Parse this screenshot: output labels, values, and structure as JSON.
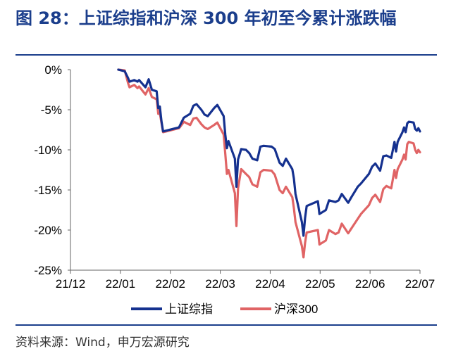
{
  "figure_title": "图 28：上证综指和沪深 300 年初至今累计涨跌幅",
  "source": "资料来源：Wind，申万宏源研究",
  "colors": {
    "accent": "#1b3e8c",
    "series_1": "#15318f",
    "series_2": "#e06465",
    "axis": "#666666"
  },
  "chart_data": {
    "type": "line",
    "title": "",
    "xlabel": "",
    "ylabel": "",
    "x_ticks": [
      "21/12",
      "22/01",
      "22/02",
      "22/03",
      "22/04",
      "22/05",
      "22/06",
      "22/07"
    ],
    "y_ticks": [
      "0%",
      "-5%",
      "-10%",
      "-15%",
      "-20%",
      "-25%"
    ],
    "ylim": [
      -25,
      0
    ],
    "xlim": [
      "2021-12-01",
      "2022-07-08"
    ],
    "legend_position": "bottom",
    "series": [
      {
        "name": "上证综指",
        "color": "#15318f",
        "points": [
          [
            "2021-12-31",
            0.0
          ],
          [
            "2022-01-04",
            -0.2
          ],
          [
            "2022-01-06",
            -1.0
          ],
          [
            "2022-01-07",
            -1.5
          ],
          [
            "2022-01-10",
            -1.3
          ],
          [
            "2022-01-12",
            -1.5
          ],
          [
            "2022-01-13",
            -1.3
          ],
          [
            "2022-01-17",
            -2.2
          ],
          [
            "2022-01-19",
            -1.2
          ],
          [
            "2022-01-21",
            -2.5
          ],
          [
            "2022-01-24",
            -2.7
          ],
          [
            "2022-01-25",
            -4.8
          ],
          [
            "2022-01-26",
            -4.6
          ],
          [
            "2022-01-27",
            -6.4
          ],
          [
            "2022-01-28",
            -7.7
          ],
          [
            "2022-02-07",
            -7.2
          ],
          [
            "2022-02-09",
            -6.4
          ],
          [
            "2022-02-10",
            -6.0
          ],
          [
            "2022-02-14",
            -5.5
          ],
          [
            "2022-02-16",
            -4.5
          ],
          [
            "2022-02-18",
            -4.3
          ],
          [
            "2022-02-21",
            -5.0
          ],
          [
            "2022-02-23",
            -5.6
          ],
          [
            "2022-02-25",
            -5.8
          ],
          [
            "2022-03-01",
            -4.8
          ],
          [
            "2022-03-03",
            -4.4
          ],
          [
            "2022-03-07",
            -5.8
          ],
          [
            "2022-03-08",
            -8.1
          ],
          [
            "2022-03-09",
            -9.8
          ],
          [
            "2022-03-10",
            -8.9
          ],
          [
            "2022-03-14",
            -11.1
          ],
          [
            "2022-03-15",
            -14.6
          ],
          [
            "2022-03-16",
            -11.2
          ],
          [
            "2022-03-18",
            -9.9
          ],
          [
            "2022-03-21",
            -10.0
          ],
          [
            "2022-03-23",
            -10.4
          ],
          [
            "2022-03-25",
            -11.1
          ],
          [
            "2022-03-28",
            -11.3
          ],
          [
            "2022-03-30",
            -9.6
          ],
          [
            "2022-04-01",
            -9.5
          ],
          [
            "2022-04-06",
            -9.6
          ],
          [
            "2022-04-08",
            -9.9
          ],
          [
            "2022-04-11",
            -11.6
          ],
          [
            "2022-04-13",
            -12.0
          ],
          [
            "2022-04-15",
            -11.1
          ],
          [
            "2022-04-19",
            -12.4
          ],
          [
            "2022-04-20",
            -13.6
          ],
          [
            "2022-04-21",
            -15.5
          ],
          [
            "2022-04-25",
            -19.0
          ],
          [
            "2022-04-26",
            -20.7
          ],
          [
            "2022-04-27",
            -18.5
          ],
          [
            "2022-04-28",
            -17.0
          ],
          [
            "2022-05-05",
            -16.4
          ],
          [
            "2022-05-06",
            -18.0
          ],
          [
            "2022-05-10",
            -17.5
          ],
          [
            "2022-05-12",
            -16.3
          ],
          [
            "2022-05-16",
            -16.5
          ],
          [
            "2022-05-18",
            -16.3
          ],
          [
            "2022-05-20",
            -15.5
          ],
          [
            "2022-05-24",
            -16.6
          ],
          [
            "2022-05-26",
            -15.9
          ],
          [
            "2022-05-30",
            -14.6
          ],
          [
            "2022-06-01",
            -14.2
          ],
          [
            "2022-06-06",
            -13.0
          ],
          [
            "2022-06-08",
            -12.1
          ],
          [
            "2022-06-10",
            -11.7
          ],
          [
            "2022-06-13",
            -12.6
          ],
          [
            "2022-06-15",
            -10.8
          ],
          [
            "2022-06-17",
            -10.7
          ],
          [
            "2022-06-20",
            -11.0
          ],
          [
            "2022-06-22",
            -9.0
          ],
          [
            "2022-06-23",
            -10.2
          ],
          [
            "2022-06-24",
            -9.0
          ],
          [
            "2022-06-27",
            -7.8
          ],
          [
            "2022-06-28",
            -7.2
          ],
          [
            "2022-06-29",
            -7.8
          ],
          [
            "2022-06-30",
            -6.7
          ],
          [
            "2022-07-01",
            -6.5
          ],
          [
            "2022-07-04",
            -6.6
          ],
          [
            "2022-07-05",
            -7.4
          ],
          [
            "2022-07-06",
            -7.6
          ],
          [
            "2022-07-07",
            -7.3
          ],
          [
            "2022-07-08",
            -7.7
          ]
        ]
      },
      {
        "name": "沪深300",
        "color": "#e06465",
        "points": [
          [
            "2021-12-31",
            0.0
          ],
          [
            "2022-01-04",
            -0.1
          ],
          [
            "2022-01-06",
            -1.6
          ],
          [
            "2022-01-07",
            -2.2
          ],
          [
            "2022-01-10",
            -1.9
          ],
          [
            "2022-01-12",
            -2.3
          ],
          [
            "2022-01-13",
            -2.1
          ],
          [
            "2022-01-17",
            -3.1
          ],
          [
            "2022-01-19",
            -2.3
          ],
          [
            "2022-01-21",
            -3.4
          ],
          [
            "2022-01-24",
            -3.7
          ],
          [
            "2022-01-25",
            -5.5
          ],
          [
            "2022-01-26",
            -5.4
          ],
          [
            "2022-01-27",
            -6.6
          ],
          [
            "2022-01-28",
            -7.8
          ],
          [
            "2022-02-07",
            -7.3
          ],
          [
            "2022-02-09",
            -6.8
          ],
          [
            "2022-02-10",
            -6.5
          ],
          [
            "2022-02-14",
            -6.9
          ],
          [
            "2022-02-16",
            -6.1
          ],
          [
            "2022-02-18",
            -6.0
          ],
          [
            "2022-02-21",
            -6.8
          ],
          [
            "2022-02-23",
            -7.2
          ],
          [
            "2022-02-25",
            -7.4
          ],
          [
            "2022-03-01",
            -6.9
          ],
          [
            "2022-03-03",
            -6.6
          ],
          [
            "2022-03-07",
            -8.1
          ],
          [
            "2022-03-08",
            -10.5
          ],
          [
            "2022-03-09",
            -13.0
          ],
          [
            "2022-03-10",
            -12.5
          ],
          [
            "2022-03-14",
            -15.4
          ],
          [
            "2022-03-15",
            -19.5
          ],
          [
            "2022-03-16",
            -14.8
          ],
          [
            "2022-03-18",
            -12.4
          ],
          [
            "2022-03-21",
            -13.0
          ],
          [
            "2022-03-23",
            -13.4
          ],
          [
            "2022-03-25",
            -14.3
          ],
          [
            "2022-03-28",
            -14.6
          ],
          [
            "2022-03-30",
            -12.8
          ],
          [
            "2022-04-01",
            -12.5
          ],
          [
            "2022-04-06",
            -12.6
          ],
          [
            "2022-04-08",
            -13.1
          ],
          [
            "2022-04-11",
            -15.0
          ],
          [
            "2022-04-13",
            -15.4
          ],
          [
            "2022-04-15",
            -14.6
          ],
          [
            "2022-04-19",
            -15.9
          ],
          [
            "2022-04-20",
            -17.3
          ],
          [
            "2022-04-21",
            -19.0
          ],
          [
            "2022-04-25",
            -22.0
          ],
          [
            "2022-04-26",
            -23.4
          ],
          [
            "2022-04-27",
            -21.6
          ],
          [
            "2022-04-28",
            -20.3
          ],
          [
            "2022-05-05",
            -20.0
          ],
          [
            "2022-05-06",
            -21.8
          ],
          [
            "2022-05-10",
            -21.3
          ],
          [
            "2022-05-12",
            -20.0
          ],
          [
            "2022-05-16",
            -20.5
          ],
          [
            "2022-05-18",
            -20.3
          ],
          [
            "2022-05-20",
            -19.2
          ],
          [
            "2022-05-24",
            -20.4
          ],
          [
            "2022-05-26",
            -19.8
          ],
          [
            "2022-05-30",
            -18.6
          ],
          [
            "2022-06-01",
            -18.0
          ],
          [
            "2022-06-06",
            -16.9
          ],
          [
            "2022-06-08",
            -16.0
          ],
          [
            "2022-06-10",
            -15.6
          ],
          [
            "2022-06-13",
            -16.5
          ],
          [
            "2022-06-15",
            -14.9
          ],
          [
            "2022-06-17",
            -14.5
          ],
          [
            "2022-06-20",
            -14.8
          ],
          [
            "2022-06-22",
            -12.5
          ],
          [
            "2022-06-23",
            -13.5
          ],
          [
            "2022-06-24",
            -12.4
          ],
          [
            "2022-06-27",
            -11.2
          ],
          [
            "2022-06-28",
            -10.6
          ],
          [
            "2022-06-29",
            -11.2
          ],
          [
            "2022-06-30",
            -9.3
          ],
          [
            "2022-07-01",
            -9.0
          ],
          [
            "2022-07-04",
            -9.2
          ],
          [
            "2022-07-05",
            -10.0
          ],
          [
            "2022-07-06",
            -10.4
          ],
          [
            "2022-07-07",
            -10.0
          ],
          [
            "2022-07-08",
            -10.3
          ]
        ]
      }
    ]
  }
}
